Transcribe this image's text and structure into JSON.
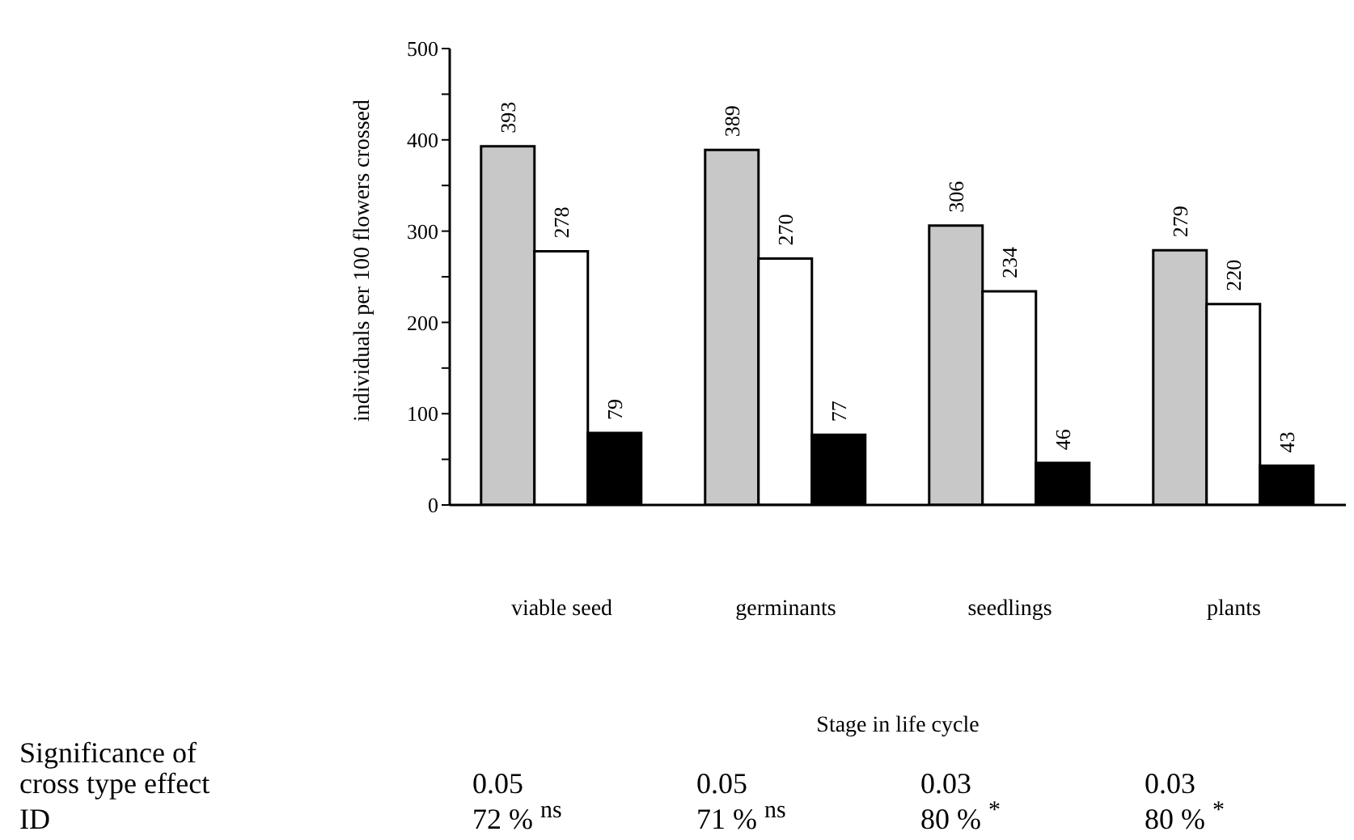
{
  "chart_data": {
    "type": "bar",
    "xlabel": "Stage in life cycle",
    "ylabel": "individuals per 100 flowers crossed",
    "categories": [
      "viable seed",
      "germinants",
      "seedlings",
      "plants"
    ],
    "series": [
      {
        "color": "#c8c8c8",
        "values": [
          393,
          389,
          306,
          279
        ]
      },
      {
        "color": "#ffffff",
        "values": [
          278,
          270,
          234,
          220
        ]
      },
      {
        "color": "#000000",
        "values": [
          79,
          77,
          46,
          43
        ]
      }
    ],
    "ylim": [
      0,
      500
    ],
    "yticks": [
      0,
      {
        "value": 50,
        "label": null
      },
      100,
      {
        "value": 150,
        "label": null
      },
      200,
      {
        "value": 250,
        "label": null
      },
      300,
      {
        "value": 350,
        "label": null
      },
      400,
      {
        "value": 450,
        "label": null
      },
      500
    ],
    "data_labels": true,
    "annotations": [
      "Significance of cross type effect",
      "0.05",
      "0.05",
      "0.03",
      "0.03",
      "ID",
      "72 % $^{ns}$",
      "71 % $^{ns}$",
      "80 % $^{*}$",
      "80 % $^{*}$"
    ]
  }
}
